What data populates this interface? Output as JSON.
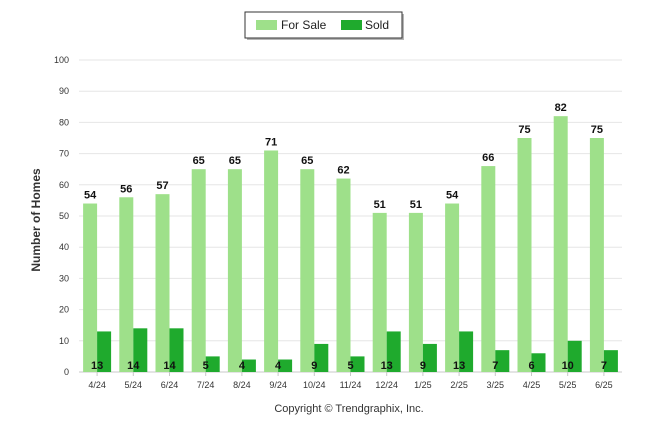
{
  "chart_data": {
    "type": "bar",
    "categories": [
      "4/24",
      "5/24",
      "6/24",
      "7/24",
      "8/24",
      "9/24",
      "10/24",
      "11/24",
      "12/24",
      "1/25",
      "2/25",
      "3/25",
      "4/25",
      "5/25",
      "6/25"
    ],
    "series": [
      {
        "name": "For Sale",
        "color": "#9ee08a",
        "values": [
          54,
          56,
          57,
          65,
          65,
          71,
          65,
          62,
          51,
          51,
          54,
          66,
          75,
          82,
          75
        ]
      },
      {
        "name": "Sold",
        "color": "#1faa2d",
        "values": [
          13,
          14,
          14,
          5,
          4,
          4,
          9,
          5,
          13,
          9,
          13,
          7,
          6,
          10,
          7
        ]
      }
    ],
    "xlabel": "",
    "ylabel": "Number of Homes",
    "ylim": [
      0,
      100
    ],
    "yticks": [
      0,
      10,
      20,
      30,
      40,
      50,
      60,
      70,
      80,
      90,
      100
    ],
    "grid": true,
    "legend_position": "top-center",
    "footer": "Copyright © Trendgraphix, Inc."
  }
}
